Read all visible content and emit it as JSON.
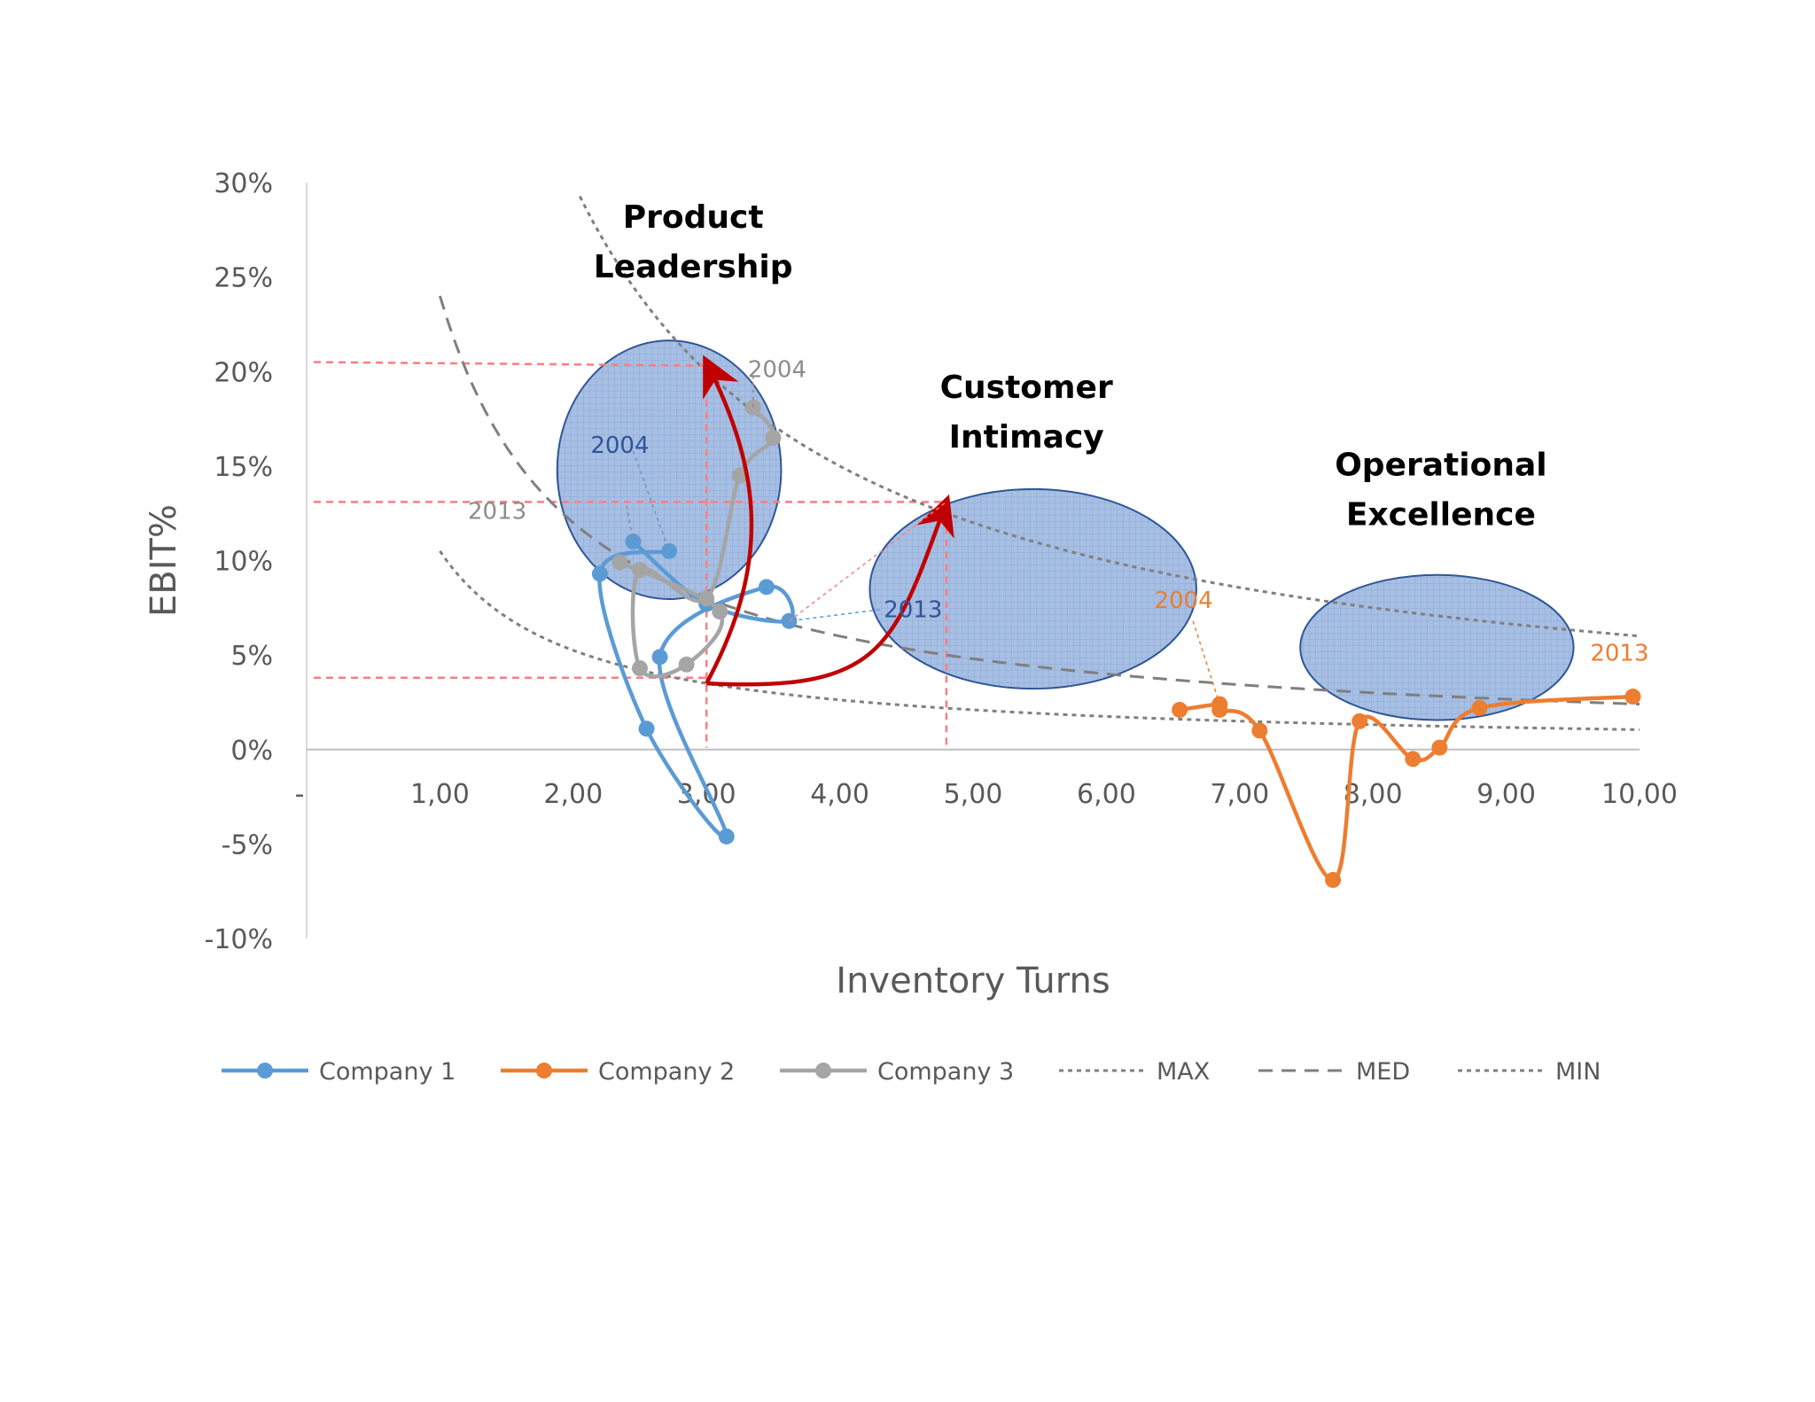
{
  "chart_data": {
    "type": "line",
    "xlabel": "Inventory Turns",
    "ylabel": "EBIT%",
    "xlim": [
      0,
      10
    ],
    "ylim": [
      -0.1,
      0.3
    ],
    "x_tick_labels": [
      "-",
      "1,00",
      "2,00",
      "3,00",
      "4,00",
      "5,00",
      "6,00",
      "7,00",
      "8,00",
      "9,00",
      "10,00"
    ],
    "y_tick_labels": [
      "30%",
      "25%",
      "20%",
      "15%",
      "10%",
      "5%",
      "0%",
      "-5%",
      "-10%"
    ],
    "grid": false,
    "legend_position": "bottom",
    "series": [
      {
        "name": "Company 1",
        "color": "#5B9BD5",
        "marker": "circle",
        "points": [
          [
            2.72,
            0.105
          ],
          [
            2.2,
            0.093
          ],
          [
            2.55,
            0.011
          ],
          [
            3.15,
            -0.046
          ],
          [
            2.65,
            0.049
          ],
          [
            3.45,
            0.086
          ],
          [
            3.62,
            0.068
          ],
          [
            3.0,
            0.077
          ],
          [
            2.45,
            0.11
          ]
        ]
      },
      {
        "name": "Company 2",
        "color": "#ED7D31",
        "marker": "circle",
        "points": [
          [
            6.55,
            0.021
          ],
          [
            6.85,
            0.024
          ],
          [
            6.85,
            0.021
          ],
          [
            7.15,
            0.01
          ],
          [
            7.7,
            -0.069
          ],
          [
            7.9,
            0.015
          ],
          [
            8.3,
            -0.005
          ],
          [
            8.5,
            0.001
          ],
          [
            8.8,
            0.022
          ],
          [
            9.95,
            0.028
          ]
        ]
      },
      {
        "name": "Company 3",
        "color": "#A5A5A5",
        "marker": "circle",
        "points": [
          [
            3.35,
            0.181
          ],
          [
            3.5,
            0.165
          ],
          [
            3.25,
            0.145
          ],
          [
            3.0,
            0.08
          ],
          [
            2.5,
            0.095
          ],
          [
            2.5,
            0.043
          ],
          [
            2.85,
            0.045
          ],
          [
            3.1,
            0.073
          ],
          [
            2.35,
            0.099
          ]
        ]
      },
      {
        "name": "MAX",
        "color": "#7F7F7F",
        "style": "dotted",
        "x_range": [
          2.05,
          10
        ],
        "formula": "k/x",
        "k": 0.6
      },
      {
        "name": "MED",
        "color": "#7F7F7F",
        "style": "dashed",
        "x_range": [
          1.0,
          10
        ],
        "formula": "k/x",
        "k": 0.24
      },
      {
        "name": "MIN",
        "color": "#7F7F7F",
        "style": "dotted",
        "x_range": [
          1.0,
          10
        ],
        "formula": "k/x",
        "k": 0.105
      }
    ],
    "annotations": [
      {
        "text": "Product Leadership",
        "lines": [
          "Product",
          "Leadership"
        ]
      },
      {
        "text": "Customer Intimacy",
        "lines": [
          "Customer",
          "Intimacy"
        ]
      },
      {
        "text": "Operational Excellence",
        "lines": [
          "Operational",
          "Excellence"
        ]
      },
      {
        "text": "2004",
        "series": "Company 3"
      },
      {
        "text": "2004",
        "series": "Company 1"
      },
      {
        "text": "2013",
        "series": "Company 3"
      },
      {
        "text": "2013",
        "series": "Company 1"
      },
      {
        "text": "2004",
        "series": "Company 2"
      },
      {
        "text": "2013",
        "series": "Company 2"
      }
    ],
    "reference_levels": {
      "ebit": [
        0.205,
        0.131,
        0.038
      ],
      "turns": [
        3.0,
        4.8
      ]
    },
    "strategy_regions": [
      {
        "name": "Product Leadership",
        "center": [
          2.72,
          0.148
        ],
        "radius": [
          1.68,
          0.057
        ]
      },
      {
        "name": "Customer Intimacy",
        "center": [
          5.45,
          0.085
        ],
        "radius": [
          2.45,
          0.044
        ]
      },
      {
        "name": "Operational Excellence",
        "center": [
          8.48,
          0.054
        ],
        "radius": [
          2.05,
          0.032
        ]
      }
    ],
    "arrows": [
      {
        "from": [
          3.0,
          0.035
        ],
        "to": [
          3.0,
          0.205
        ]
      },
      {
        "from": [
          3.0,
          0.035
        ],
        "to": [
          4.8,
          0.131
        ]
      }
    ]
  }
}
